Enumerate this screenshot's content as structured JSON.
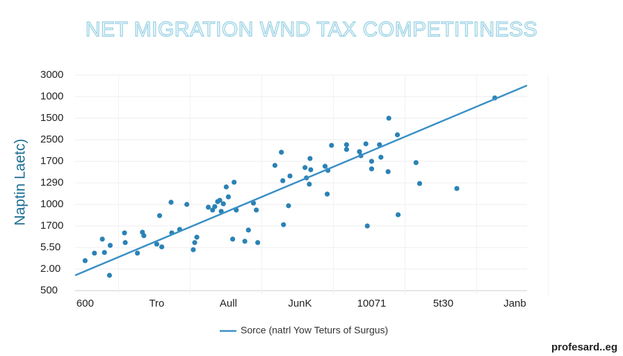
{
  "chart_data": {
    "type": "scatter",
    "title": "NET MIGRATION WND TAX COMPETITINESS",
    "y_label": "Naptin Laetc)",
    "watermark": "profesard..eg",
    "xlim": [
      -0.14,
      6.17
    ],
    "ylim": [
      0,
      10
    ],
    "xticks": [
      {
        "value": 0,
        "label": "600"
      },
      {
        "value": 1,
        "label": "Tro"
      },
      {
        "value": 2,
        "label": "Aull"
      },
      {
        "value": 3,
        "label": "JunK"
      },
      {
        "value": 4,
        "label": "10071"
      },
      {
        "value": 5,
        "label": "5t30"
      },
      {
        "value": 6,
        "label": "Janb"
      }
    ],
    "yticks": [
      {
        "value": 0,
        "label": "500"
      },
      {
        "value": 1,
        "label": "2.00"
      },
      {
        "value": 2,
        "label": "5.50"
      },
      {
        "value": 3,
        "label": "1700"
      },
      {
        "value": 4,
        "label": "1000"
      },
      {
        "value": 5,
        "label": "1290"
      },
      {
        "value": 6,
        "label": "1700"
      },
      {
        "value": 7,
        "label": "2500"
      },
      {
        "value": 8,
        "label": "1500"
      },
      {
        "value": 9,
        "label": "1000"
      },
      {
        "value": 10,
        "label": "3000"
      }
    ],
    "grid": true,
    "series": [
      {
        "color": "#2b82b5",
        "x": [
          0,
          0.13,
          0.24,
          0.27,
          0.35,
          0.34,
          0.55,
          0.56,
          0.73,
          0.8,
          0.82,
          1.0,
          1.04,
          1.07,
          1.2,
          1.21,
          1.32,
          1.42,
          1.51,
          1.53,
          1.56,
          1.72,
          1.78,
          1.81,
          1.85,
          1.88,
          1.9,
          1.93,
          1.97,
          2.0,
          2.08,
          2.11,
          2.06,
          2.23,
          2.28,
          2.35,
          2.39,
          2.41,
          2.65,
          2.74,
          2.76,
          2.77,
          2.84,
          2.86,
          3.07,
          3.09,
          3.14,
          3.15,
          3.13,
          3.35,
          3.39,
          3.38,
          3.44,
          3.65,
          3.65,
          3.83,
          3.85,
          3.92,
          3.94,
          4.0,
          4.0,
          4.11,
          4.13,
          4.24,
          4.23,
          4.36,
          4.37,
          4.62,
          4.67,
          5.19,
          5.72
        ],
        "values": [
          1.39,
          1.74,
          2.39,
          1.77,
          2.1,
          0.71,
          2.68,
          2.23,
          1.74,
          2.71,
          2.55,
          2.16,
          3.48,
          2.03,
          4.1,
          2.68,
          2.84,
          4.0,
          1.9,
          2.23,
          2.48,
          3.87,
          3.74,
          3.9,
          4.13,
          4.19,
          3.68,
          4.03,
          4.81,
          4.35,
          5.03,
          3.74,
          2.39,
          2.29,
          2.81,
          4.06,
          3.74,
          2.23,
          5.81,
          6.42,
          5.1,
          3.06,
          3.94,
          5.32,
          5.71,
          5.23,
          6.13,
          5.61,
          4.94,
          5.77,
          5.58,
          4.48,
          6.74,
          6.77,
          6.55,
          6.45,
          6.26,
          6.81,
          3.0,
          6.0,
          5.65,
          6.77,
          6.19,
          8.0,
          5.52,
          7.23,
          3.52,
          5.94,
          4.97,
          4.74,
          8.94
        ]
      },
      {
        "name": "Sorce (natrl Yow Teturs of Surgus)",
        "color": "#3a90c6",
        "kind": "line",
        "x": [
          -0.14,
          6.17
        ],
        "values": [
          0.71,
          9.52
        ]
      }
    ]
  }
}
